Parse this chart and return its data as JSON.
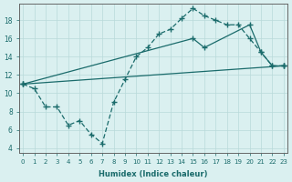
{
  "bg_color": "#daf0f0",
  "line_color": "#1a6b6b",
  "xlim": [
    -0.3,
    23.3
  ],
  "ylim": [
    3.5,
    19.8
  ],
  "yticks": [
    4,
    6,
    8,
    10,
    12,
    14,
    16,
    18
  ],
  "xticks": [
    0,
    1,
    2,
    3,
    4,
    5,
    6,
    7,
    8,
    9,
    10,
    11,
    12,
    13,
    14,
    15,
    16,
    17,
    18,
    19,
    20,
    21,
    22,
    23
  ],
  "xlabel": "Humidex (Indice chaleur)",
  "line1_x": [
    0,
    1,
    2,
    3,
    4,
    5,
    6,
    7,
    8,
    9,
    10,
    11,
    12,
    13,
    14,
    15,
    16,
    17,
    18,
    19,
    20,
    21,
    22,
    23
  ],
  "line1_y": [
    11,
    10.5,
    8.5,
    8.5,
    6.5,
    7.0,
    5.5,
    4.5,
    9.0,
    11.5,
    14.0,
    15.0,
    16.5,
    17.0,
    18.2,
    19.3,
    18.5,
    18.0,
    17.5,
    17.5,
    16.0,
    14.5,
    13.0,
    13.0
  ],
  "line2_x": [
    0,
    15,
    16,
    20,
    21,
    22,
    23
  ],
  "line2_y": [
    11,
    16.0,
    15.0,
    17.5,
    14.5,
    13.0,
    13.0
  ],
  "line3_x": [
    0,
    23
  ],
  "line3_y": [
    11,
    13.0
  ]
}
